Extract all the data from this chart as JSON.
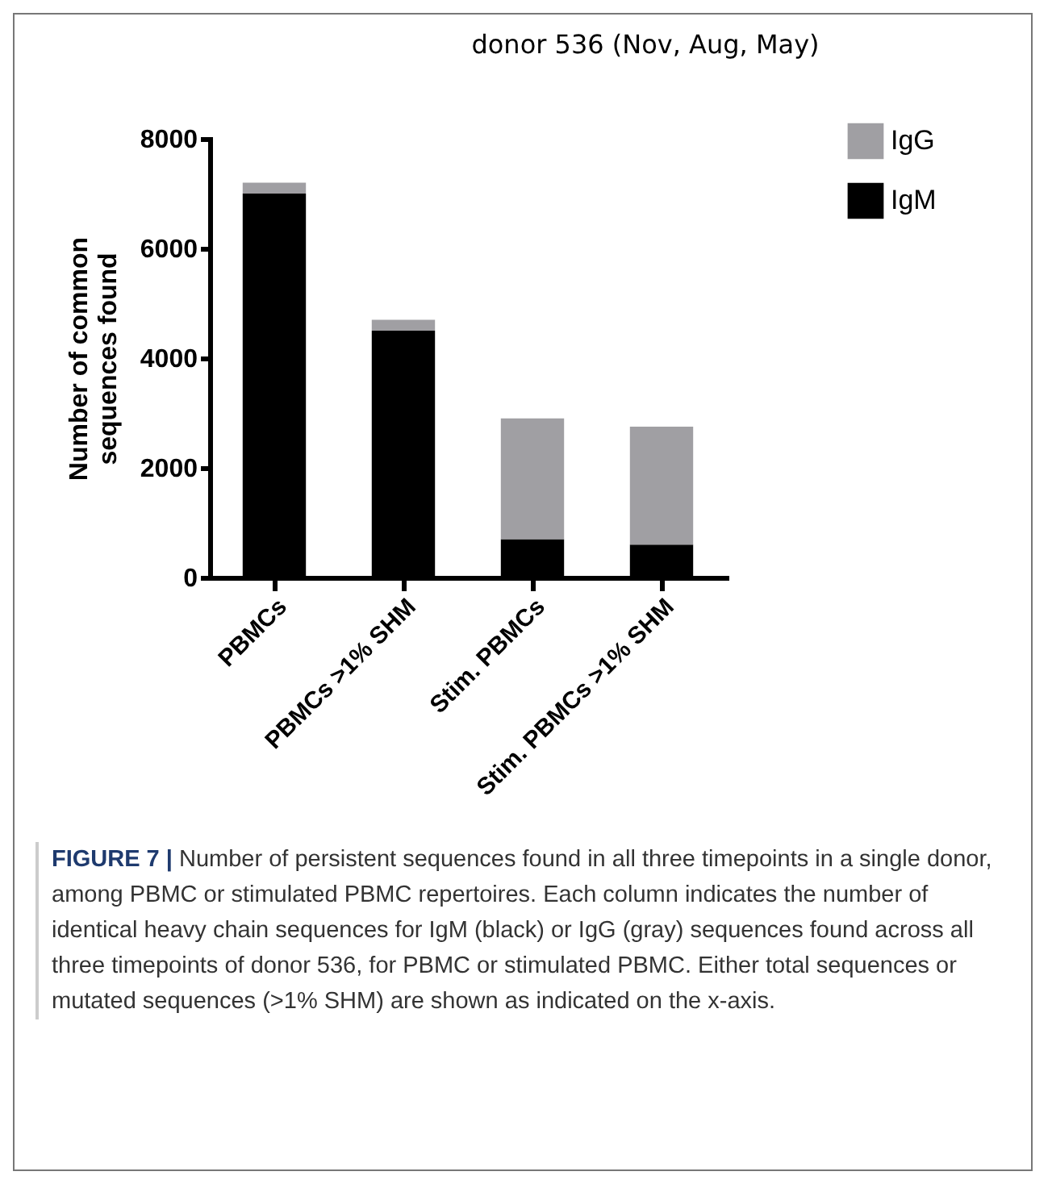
{
  "chart_data": {
    "type": "bar",
    "title": "donor 536 (Nov, Aug, May)",
    "categories": [
      "PBMCs",
      "PBMCs >1% SHM",
      "Stim. PBMCs",
      "Stim. PBMCs >1% SHM"
    ],
    "series": [
      {
        "name": "IgM",
        "color": "#000000",
        "values": [
          7000,
          4500,
          700,
          600
        ]
      },
      {
        "name": "IgG",
        "color": "#a09fa3",
        "values": [
          200,
          200,
          2200,
          2150
        ]
      }
    ],
    "stacked": true,
    "ylabel": "Number of common\nsequences found",
    "ylim": [
      0,
      8000
    ],
    "yticks": [
      0,
      2000,
      4000,
      6000,
      8000
    ],
    "legend": "top right",
    "annotations": [
      "FIGURE 7 | Number of persistent sequences found in all three timepoints in a single donor, among PBMC or stimulated PBMC repertoires. Each column indicates the number of identical heavy chain sequences for IgM (black) or IgG (gray) sequences found across all three timepoints of donor 536, for PBMC or stimulated PBMC. Either total sequences or mutated sequences (>1% SHM) are shown as indicated on the x-axis."
    ]
  }
}
